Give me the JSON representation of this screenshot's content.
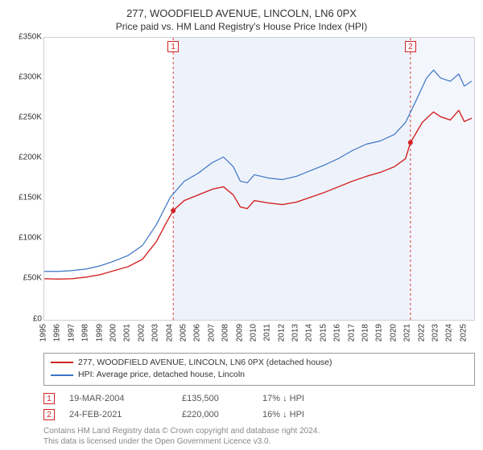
{
  "title": "277, WOODFIELD AVENUE, LINCOLN, LN6 0PX",
  "subtitle": "Price paid vs. HM Land Registry's House Price Index (HPI)",
  "chart": {
    "type": "line",
    "background_color": "#ffffff",
    "plot_border_color": "#cfcfcf",
    "x": {
      "min": 1995,
      "max": 2025.7,
      "ticks": [
        1995,
        1996,
        1997,
        1998,
        1999,
        2000,
        2001,
        2002,
        2003,
        2004,
        2005,
        2006,
        2007,
        2008,
        2009,
        2010,
        2011,
        2012,
        2013,
        2014,
        2015,
        2016,
        2017,
        2018,
        2019,
        2020,
        2021,
        2022,
        2023,
        2024,
        2025
      ],
      "tick_label_fontsize": 10,
      "tick_label_rotation": -90,
      "tick_label_color": "#333333"
    },
    "y": {
      "min": 0,
      "max": 350000,
      "ticks": [
        0,
        50000,
        100000,
        150000,
        200000,
        250000,
        300000,
        350000
      ],
      "tick_labels": [
        "£0",
        "£50K",
        "£100K",
        "£150K",
        "£200K",
        "£250K",
        "£300K",
        "£350K"
      ],
      "tick_label_fontsize": 10,
      "tick_label_color": "#333333"
    },
    "shaded_region": {
      "xmin": 2004.21,
      "xmax": 2021.15,
      "fill": "#eef3fb",
      "edge": "#d93b3b",
      "edge_dash": "3,3",
      "edge_width": 1
    },
    "shaded_region_right": {
      "xmin": 2021.15,
      "xmax": 2025.7,
      "fill": "#f3f6fc"
    },
    "series": [
      {
        "id": "price_paid",
        "label": "277, WOODFIELD AVENUE, LINCOLN, LN6 0PX (detached house)",
        "color": "#d32424",
        "width": 1.4,
        "data": [
          [
            1995.0,
            51000
          ],
          [
            1996.0,
            50500
          ],
          [
            1997.0,
            51000
          ],
          [
            1998.0,
            53000
          ],
          [
            1999.0,
            56000
          ],
          [
            2000.0,
            61000
          ],
          [
            2001.0,
            66000
          ],
          [
            2002.0,
            75000
          ],
          [
            2003.0,
            97000
          ],
          [
            2003.7,
            120000
          ],
          [
            2004.21,
            135500
          ],
          [
            2005.0,
            148000
          ],
          [
            2006.0,
            155000
          ],
          [
            2007.0,
            162000
          ],
          [
            2007.8,
            165000
          ],
          [
            2008.5,
            155000
          ],
          [
            2009.0,
            140000
          ],
          [
            2009.5,
            138000
          ],
          [
            2010.0,
            148000
          ],
          [
            2011.0,
            145000
          ],
          [
            2012.0,
            143000
          ],
          [
            2013.0,
            146000
          ],
          [
            2014.0,
            152000
          ],
          [
            2015.0,
            158000
          ],
          [
            2016.0,
            165000
          ],
          [
            2017.0,
            172000
          ],
          [
            2018.0,
            178000
          ],
          [
            2019.0,
            183000
          ],
          [
            2020.0,
            190000
          ],
          [
            2020.8,
            200000
          ],
          [
            2021.15,
            220000
          ],
          [
            2022.0,
            245000
          ],
          [
            2022.8,
            258000
          ],
          [
            2023.3,
            252000
          ],
          [
            2024.0,
            248000
          ],
          [
            2024.6,
            260000
          ],
          [
            2025.0,
            246000
          ],
          [
            2025.5,
            250000
          ]
        ]
      },
      {
        "id": "hpi",
        "label": "HPI: Average price, detached house, Lincoln",
        "color": "#3b74c4",
        "width": 1.2,
        "data": [
          [
            1995.0,
            60000
          ],
          [
            1996.0,
            60000
          ],
          [
            1997.0,
            61000
          ],
          [
            1998.0,
            63000
          ],
          [
            1999.0,
            67000
          ],
          [
            2000.0,
            73000
          ],
          [
            2001.0,
            80000
          ],
          [
            2002.0,
            92000
          ],
          [
            2003.0,
            118000
          ],
          [
            2004.0,
            152000
          ],
          [
            2005.0,
            172000
          ],
          [
            2006.0,
            182000
          ],
          [
            2007.0,
            195000
          ],
          [
            2007.8,
            202000
          ],
          [
            2008.5,
            190000
          ],
          [
            2009.0,
            172000
          ],
          [
            2009.5,
            170000
          ],
          [
            2010.0,
            180000
          ],
          [
            2011.0,
            176000
          ],
          [
            2012.0,
            174000
          ],
          [
            2013.0,
            178000
          ],
          [
            2014.0,
            185000
          ],
          [
            2015.0,
            192000
          ],
          [
            2016.0,
            200000
          ],
          [
            2017.0,
            210000
          ],
          [
            2018.0,
            218000
          ],
          [
            2019.0,
            222000
          ],
          [
            2020.0,
            230000
          ],
          [
            2020.8,
            245000
          ],
          [
            2021.5,
            270000
          ],
          [
            2022.3,
            300000
          ],
          [
            2022.8,
            310000
          ],
          [
            2023.3,
            300000
          ],
          [
            2024.0,
            296000
          ],
          [
            2024.6,
            305000
          ],
          [
            2025.0,
            290000
          ],
          [
            2025.5,
            296000
          ]
        ]
      }
    ],
    "markers": [
      {
        "n": "1",
        "x": 2004.21,
        "y": 135500,
        "date": "19-MAR-2004",
        "price": "£135,500",
        "delta": "17% ↓ HPI",
        "color": "#d32424",
        "point_fill": "#d32424",
        "point_r": 3
      },
      {
        "n": "2",
        "x": 2021.15,
        "y": 220000,
        "date": "24-FEB-2021",
        "price": "£220,000",
        "delta": "16% ↓ HPI",
        "color": "#d32424",
        "point_fill": "#d32424",
        "point_r": 3
      }
    ]
  },
  "legend": {
    "border_color": "#999999",
    "fontsize": 10.5
  },
  "license": {
    "line1": "Contains HM Land Registry data © Crown copyright and database right 2024.",
    "line2": "This data is licensed under the Open Government Licence v3.0.",
    "color": "#888888",
    "fontsize": 10
  }
}
